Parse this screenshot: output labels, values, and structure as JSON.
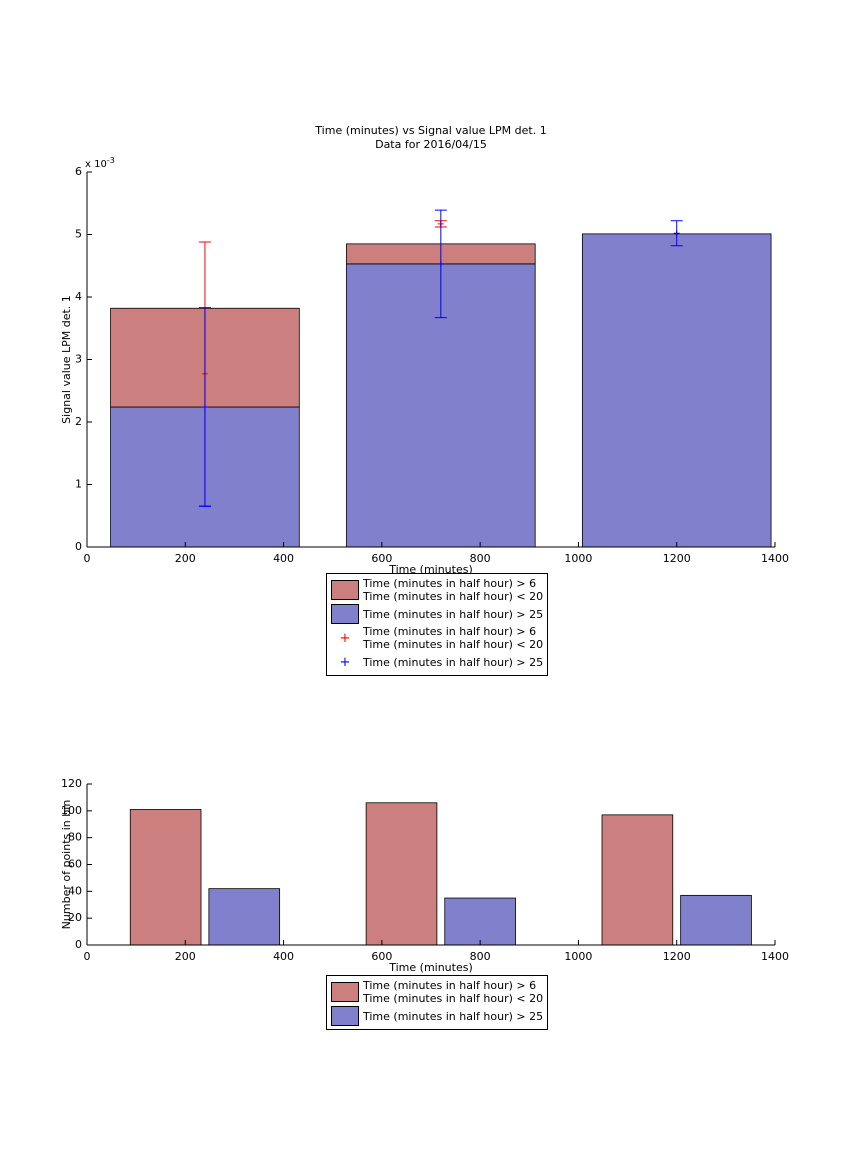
{
  "chart_data": [
    {
      "type": "bar",
      "stacked": true,
      "title": "Time (minutes) vs Signal value LPM det. 1",
      "subtitle": "Data for 2016/04/15",
      "xlabel": "Time (minutes)",
      "ylabel": "Signal value LPM det. 1",
      "axis_multiplier": {
        "base": "x 10",
        "exponent": "-3"
      },
      "x": [
        240,
        720,
        1200
      ],
      "series": [
        {
          "name": "Time (minutes in half hour) > 6\nTime (minutes in half hour) < 20",
          "color": "#cc7f7f",
          "values": [
            1.58,
            0.32,
            0
          ]
        },
        {
          "name": "Time (minutes in half hour) > 25",
          "color": "#8080cc",
          "values": [
            2.24,
            4.53,
            5.01
          ]
        }
      ],
      "error_series": [
        {
          "name": "Time (minutes in half hour) > 6\nTime (minutes in half hour) < 20",
          "color": "#ff0000",
          "values": [
            2.77,
            5.17,
            null
          ],
          "errors": [
            2.11,
            0.05,
            null
          ]
        },
        {
          "name": "Time (minutes in half hour) > 25",
          "color": "#0000ff",
          "values": [
            2.24,
            4.53,
            5.02
          ],
          "errors": [
            1.59,
            0.86,
            0.2
          ]
        }
      ],
      "xlim": [
        0,
        1400
      ],
      "xticks": [
        0,
        200,
        400,
        600,
        800,
        1000,
        1200,
        1400
      ],
      "ylim": [
        0,
        6
      ],
      "yticks": [
        0,
        1,
        2,
        3,
        4,
        5,
        6
      ]
    },
    {
      "type": "bar",
      "stacked": false,
      "xlabel": "Time (minutes)",
      "ylabel": "Number of points in bin",
      "x": [
        240,
        720,
        1200
      ],
      "series": [
        {
          "name": "Time (minutes in half hour) > 6\nTime (minutes in half hour) < 20",
          "color": "#cc7f7f",
          "values": [
            101,
            106,
            97
          ]
        },
        {
          "name": "Time (minutes in half hour) > 25",
          "color": "#8080cc",
          "values": [
            42,
            35,
            37
          ]
        }
      ],
      "xlim": [
        0,
        1400
      ],
      "xticks": [
        0,
        200,
        400,
        600,
        800,
        1000,
        1200,
        1400
      ],
      "ylim": [
        0,
        120
      ],
      "yticks": [
        0,
        20,
        40,
        60,
        80,
        100,
        120
      ]
    }
  ]
}
